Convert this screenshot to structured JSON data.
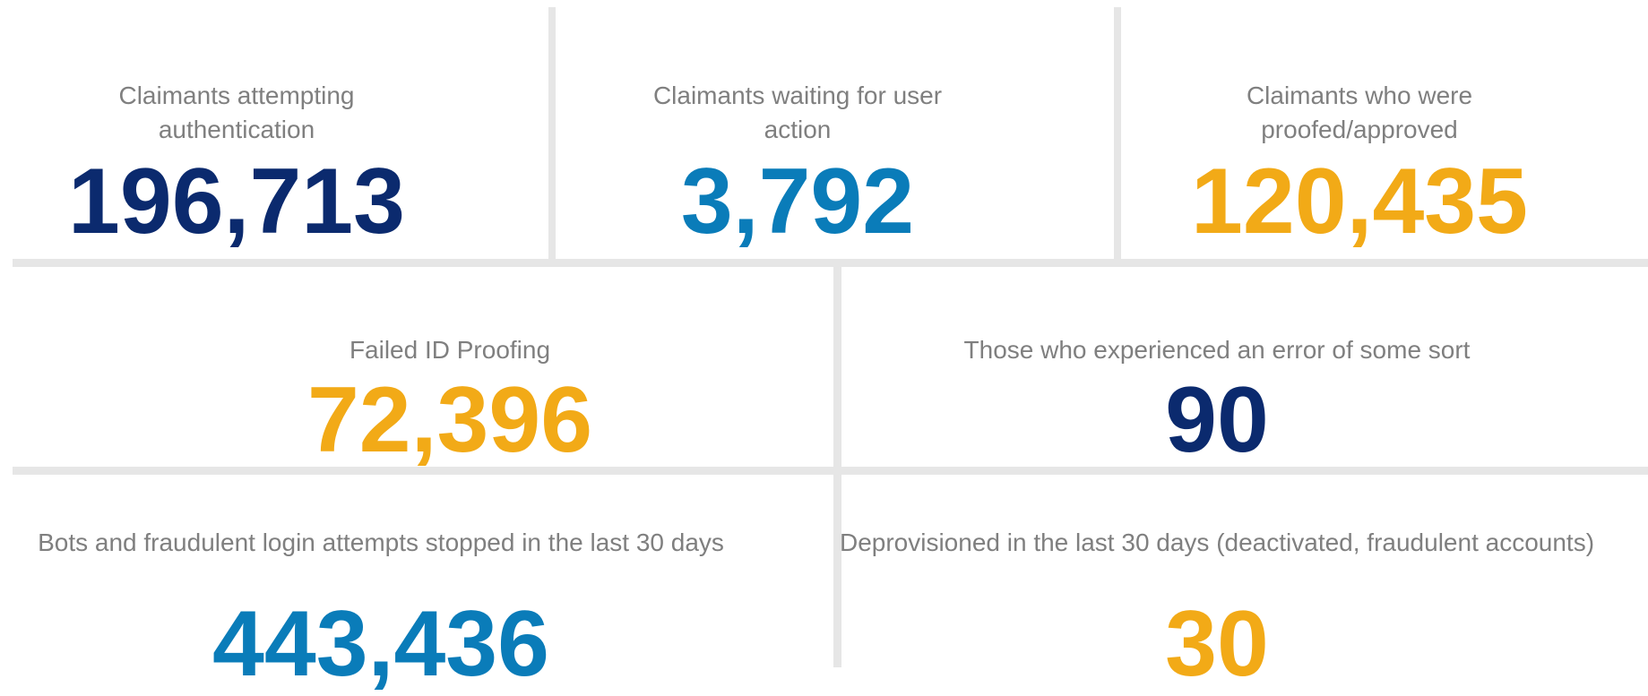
{
  "tiles": [
    {
      "label": "Claimants attempting authentication",
      "value": "196,713",
      "color": "#0b2a6e"
    },
    {
      "label": "Claimants waiting for user action",
      "value": "3,792",
      "color": "#0a7cb9"
    },
    {
      "label": "Claimants who were proofed/approved",
      "value": "120,435",
      "color": "#f2aa17"
    },
    {
      "label": "Failed ID Proofing",
      "value": "72,396",
      "color": "#f2aa17"
    },
    {
      "label": "Those who experienced an error of some sort",
      "value": "90",
      "color": "#0b2a6e"
    },
    {
      "label": "Bots and fraudulent login attempts stopped in the last 30 days",
      "value": "443,436",
      "color": "#0a7cb9"
    },
    {
      "label": "Deprovisioned in the last 30 days (deactivated, fraudulent accounts)",
      "value": "30",
      "color": "#f2aa17"
    }
  ]
}
